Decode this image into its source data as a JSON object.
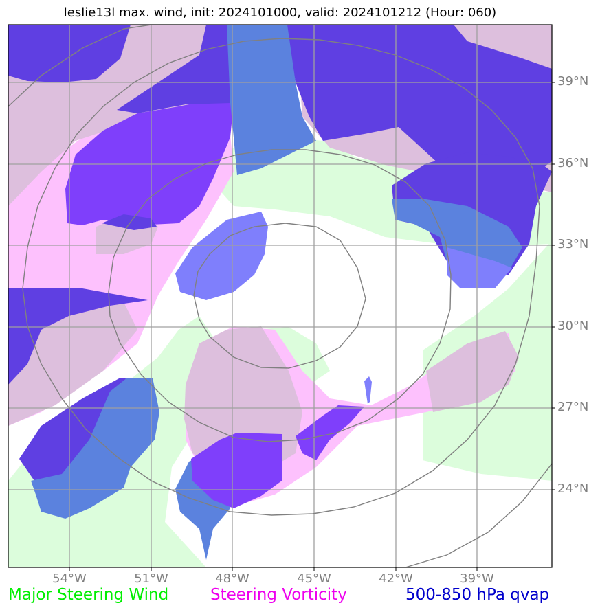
{
  "title": "leslie13l max. wind, init: 2024101000, valid: 2024101212 (Hour: 060)",
  "latitude_labels": [
    "39°N",
    "36°N",
    "33°N",
    "30°N",
    "27°N",
    "24°N"
  ],
  "longitude_labels": [
    "54°W",
    "51°W",
    "48°W",
    "45°W",
    "42°W",
    "39°W"
  ],
  "legend": {
    "wind": {
      "label": "Major Steering Wind",
      "color": "#00ee00"
    },
    "vorticity": {
      "label": "Steering Vorticity",
      "color": "#ee00ee"
    },
    "qvap": {
      "label": "500-850 hPa qvap",
      "color": "#0000cc"
    }
  },
  "layer_colors": {
    "steering_wind": "#dcfddc",
    "steering_vorticity": "#fdc1fd",
    "vorticity_overlap": "#ddbfdd",
    "qvap": "#7f7ffc",
    "qvap_over_wind": "#5b82de",
    "qvap_over_vorticity": "#7f3ffb",
    "qvap_over_both": "#5f3fe2"
  }
}
